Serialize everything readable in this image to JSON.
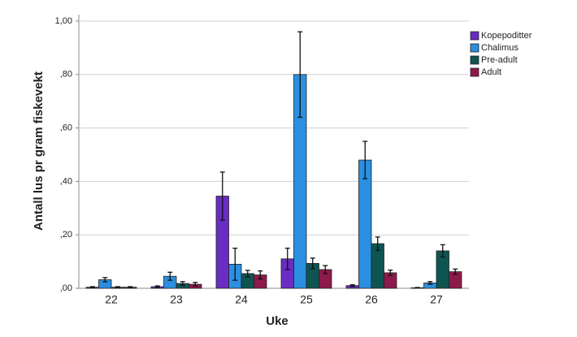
{
  "chart_data": {
    "type": "bar",
    "x_label": "Uke",
    "y_label": "Antall lus pr gram fiskevekt",
    "categories": [
      "22",
      "23",
      "24",
      "25",
      "26",
      "27"
    ],
    "series": [
      {
        "name": "Kopepoditter",
        "color": "#6a2cc2",
        "values": [
          0.004,
          0.006,
          0.345,
          0.11,
          0.01,
          0.002
        ],
        "errors": [
          0.002,
          0.003,
          0.09,
          0.04,
          0.003,
          0.001
        ]
      },
      {
        "name": "Chalimus",
        "color": "#2a8fe0",
        "values": [
          0.032,
          0.045,
          0.09,
          0.8,
          0.48,
          0.02
        ],
        "errors": [
          0.008,
          0.015,
          0.06,
          0.16,
          0.07,
          0.005
        ]
      },
      {
        "name": "Pre-adult",
        "color": "#0e5552",
        "values": [
          0.004,
          0.018,
          0.055,
          0.093,
          0.167,
          0.14
        ],
        "errors": [
          0.002,
          0.007,
          0.012,
          0.02,
          0.025,
          0.023
        ]
      },
      {
        "name": "Adult",
        "color": "#8c1a4a",
        "values": [
          0.004,
          0.015,
          0.05,
          0.07,
          0.058,
          0.062
        ],
        "errors": [
          0.002,
          0.007,
          0.015,
          0.015,
          0.01,
          0.01
        ]
      }
    ],
    "ylim": [
      0,
      1
    ],
    "yticks": [
      {
        "value": 0,
        "label": ",00"
      },
      {
        "value": 0.2,
        "label": ",20"
      },
      {
        "value": 0.4,
        "label": ",40"
      },
      {
        "value": 0.6,
        "label": ",60"
      },
      {
        "value": 0.8,
        "label": ",80"
      },
      {
        "value": 1,
        "label": "1,00"
      }
    ],
    "grid": true,
    "legend": "top-right"
  }
}
